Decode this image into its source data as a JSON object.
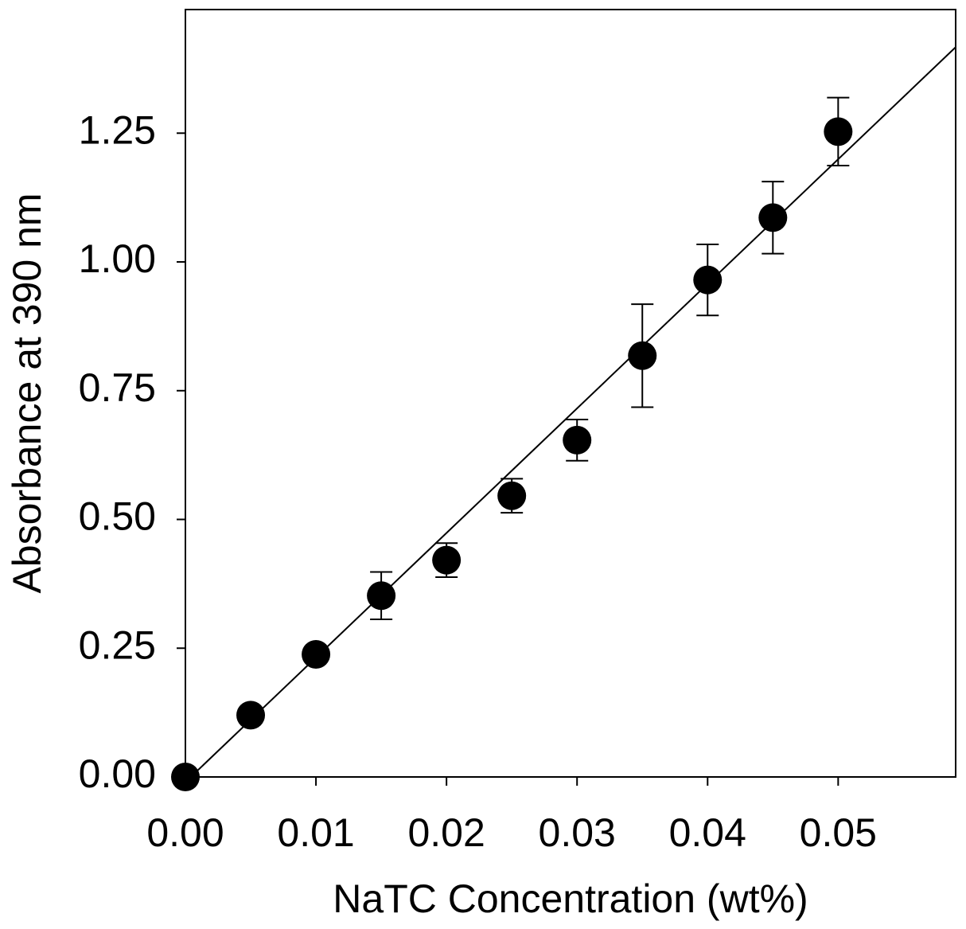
{
  "chart_data": {
    "type": "scatter",
    "x_label": "NaTC Concentration (wt%)",
    "y_label": "Absorbance at 390 nm",
    "series": [
      {
        "color": "#000000",
        "x": [
          0,
          0.005,
          0.01,
          0.015,
          0.02,
          0.025,
          0.03,
          0.035,
          0.04,
          0.045,
          0.05
        ],
        "values": [
          0,
          0.12,
          0.238,
          0.352,
          0.421,
          0.546,
          0.654,
          0.818,
          0.965,
          1.086,
          1.253
        ],
        "errors": [
          null,
          null,
          null,
          0.046,
          0.033,
          0.033,
          0.04,
          0.1,
          0.069,
          0.07,
          0.066
        ]
      }
    ],
    "fit_line": {
      "x": [
        0,
        0.059
      ],
      "values": [
        -0.01,
        1.417
      ],
      "color": "#000000"
    },
    "xlim": [
      0,
      0.059
    ],
    "ylim": [
      0,
      1.49
    ],
    "xticks": [
      {
        "value": 0,
        "label": "0.00"
      },
      {
        "value": 0.01,
        "label": "0.01"
      },
      {
        "value": 0.02,
        "label": "0.02"
      },
      {
        "value": 0.03,
        "label": "0.03"
      },
      {
        "value": 0.04,
        "label": "0.04"
      },
      {
        "value": 0.05,
        "label": "0.05"
      }
    ],
    "yticks": [
      {
        "value": 0,
        "label": "0.00"
      },
      {
        "value": 0.25,
        "label": "0.25"
      },
      {
        "value": 0.5,
        "label": "0.50"
      },
      {
        "value": 0.75,
        "label": "0.75"
      },
      {
        "value": 1,
        "label": "1.00"
      },
      {
        "value": 1.25,
        "label": "1.25"
      }
    ],
    "grid": false
  }
}
